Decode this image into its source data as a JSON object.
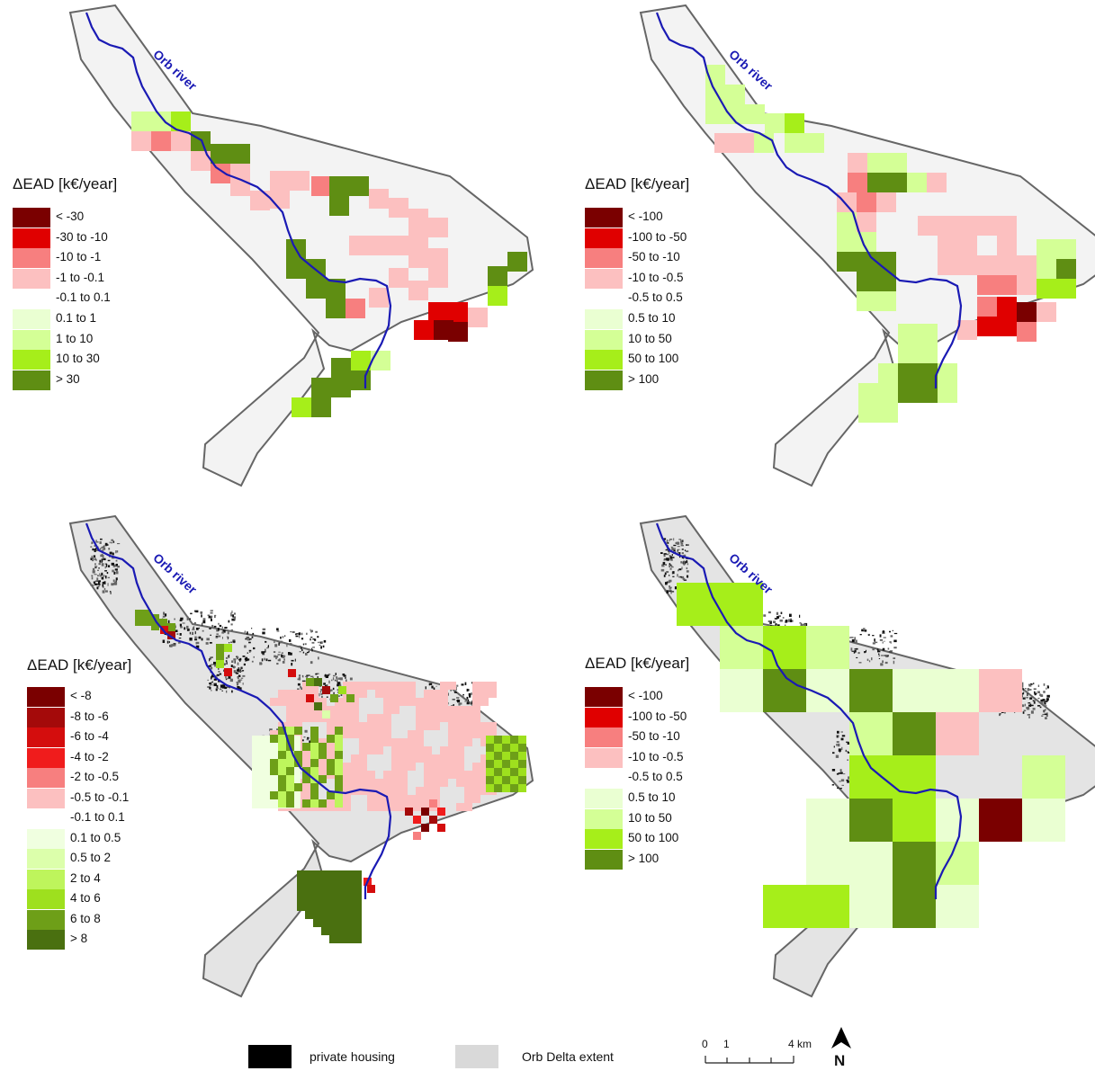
{
  "panels": [
    {
      "river_label": "Orb river",
      "legend_title": "ΔEAD [k€/year]",
      "classes": [
        {
          "label": "< -30",
          "color": "#7a0000"
        },
        {
          "label": "-30 to -10",
          "color": "#e00000"
        },
        {
          "label": "-10 to -1",
          "color": "#f77f7f"
        },
        {
          "label": "-1 to -0.1",
          "color": "#fcc0c0"
        },
        {
          "label": "-0.1 to 0.1",
          "color": "#ffffff"
        },
        {
          "label": "0.1 to 1",
          "color": "#eaffd2"
        },
        {
          "label": "1 to 10",
          "color": "#d4ff96"
        },
        {
          "label": "10 to 30",
          "color": "#a6ee1a"
        },
        {
          "label": "> 30",
          "color": "#5f8e13"
        }
      ]
    },
    {
      "river_label": "Orb river",
      "legend_title": "ΔEAD [k€/year]",
      "classes": [
        {
          "label": "< -100",
          "color": "#7a0000"
        },
        {
          "label": "-100 to -50",
          "color": "#e00000"
        },
        {
          "label": "-50 to -10",
          "color": "#f77f7f"
        },
        {
          "label": "-10 to -0.5",
          "color": "#fcc0c0"
        },
        {
          "label": "-0.5 to 0.5",
          "color": "#ffffff"
        },
        {
          "label": "0.5 to 10",
          "color": "#eaffd2"
        },
        {
          "label": "10 to 50",
          "color": "#d4ff96"
        },
        {
          "label": "50 to 100",
          "color": "#a6ee1a"
        },
        {
          "label": "> 100",
          "color": "#5f8e13"
        }
      ]
    },
    {
      "river_label": "Orb river",
      "legend_title": "ΔEAD [k€/year]",
      "classes": [
        {
          "label": "< -8",
          "color": "#7a0000"
        },
        {
          "label": "-8 to -6",
          "color": "#a40a0a"
        },
        {
          "label": "-6 to -4",
          "color": "#d40d0d"
        },
        {
          "label": "-4 to -2",
          "color": "#f01c1c"
        },
        {
          "label": "-2 to -0.5",
          "color": "#f77f7f"
        },
        {
          "label": "-0.5 to -0.1",
          "color": "#fcc0c0"
        },
        {
          "label": "-0.1 to 0.1",
          "color": "#ffffff"
        },
        {
          "label": "0.1 to 0.5",
          "color": "#f0ffe0"
        },
        {
          "label": "0.5 to 2",
          "color": "#dcffab"
        },
        {
          "label": "2 to 4",
          "color": "#bef55c"
        },
        {
          "label": "4 to 6",
          "color": "#9ee01e"
        },
        {
          "label": "6 to 8",
          "color": "#6e9f18"
        },
        {
          "label": "> 8",
          "color": "#4a7010"
        }
      ]
    },
    {
      "river_label": "Orb river",
      "legend_title": "ΔEAD [k€/year]",
      "classes": [
        {
          "label": "< -100",
          "color": "#7a0000"
        },
        {
          "label": "-100 to -50",
          "color": "#e00000"
        },
        {
          "label": "-50 to -10",
          "color": "#f77f7f"
        },
        {
          "label": "-10 to -0.5",
          "color": "#fcc0c0"
        },
        {
          "label": "-0.5 to 0.5",
          "color": "#ffffff"
        },
        {
          "label": "0.5 to 10",
          "color": "#eaffd2"
        },
        {
          "label": "10 to 50",
          "color": "#d4ff96"
        },
        {
          "label": "50 to 100",
          "color": "#a6ee1a"
        },
        {
          "label": "> 100",
          "color": "#5f8e13"
        }
      ]
    }
  ],
  "footer": {
    "housing_label": "private housing",
    "housing_color": "#000000",
    "extent_label": "Orb Delta extent",
    "extent_color": "#d9d9d9",
    "scale_ticks": [
      "0",
      "1",
      "4 km"
    ],
    "north_label": "N"
  },
  "colors": {
    "river": "#1a1ab4",
    "outline": "#666666",
    "map_fill_top": "#f3f3f3",
    "map_fill_bottom": "#e4e4e4"
  }
}
